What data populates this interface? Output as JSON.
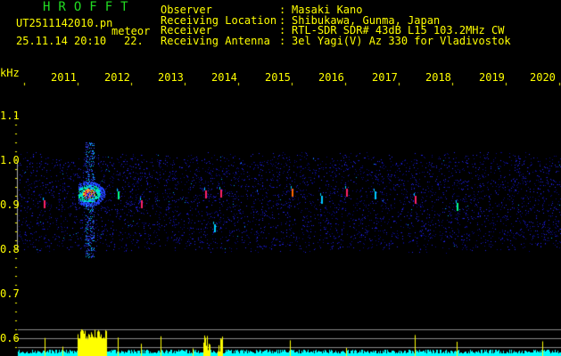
{
  "app": {
    "title": "HROFFT",
    "filename": "UT2511142010.pn",
    "mode": "meteor",
    "datetime": "25.11.14 20:10",
    "counter": "22."
  },
  "info": [
    {
      "label": "Observer",
      "value": "Masaki Kano"
    },
    {
      "label": "Receiving Location",
      "value": "Shibukawa, Gunma, Japan"
    },
    {
      "label": "Receiver",
      "value": "RTL-SDR SDR# 43dB L15 103.2MHz CW"
    },
    {
      "label": "Receiving Antenna",
      "value": "3el Yagi(V) Az 330 for Vladivostok"
    }
  ],
  "axis": {
    "y_unit": "kHz",
    "y_ticks": [
      "1.1",
      "1.0",
      "0.9",
      "0.8",
      "0.7",
      "0.6"
    ],
    "x_ticks": [
      "2011",
      "2012",
      "2013",
      "2014",
      "2015",
      "2016",
      "2017",
      "2018",
      "2019",
      "2020"
    ]
  },
  "colors": {
    "text": "#ffff00",
    "title": "#22dd22",
    "noise": "#1a1aff",
    "echo": "#ff2266",
    "count_bar": "#00ffff",
    "meteor_bar": "#ffff00"
  }
}
